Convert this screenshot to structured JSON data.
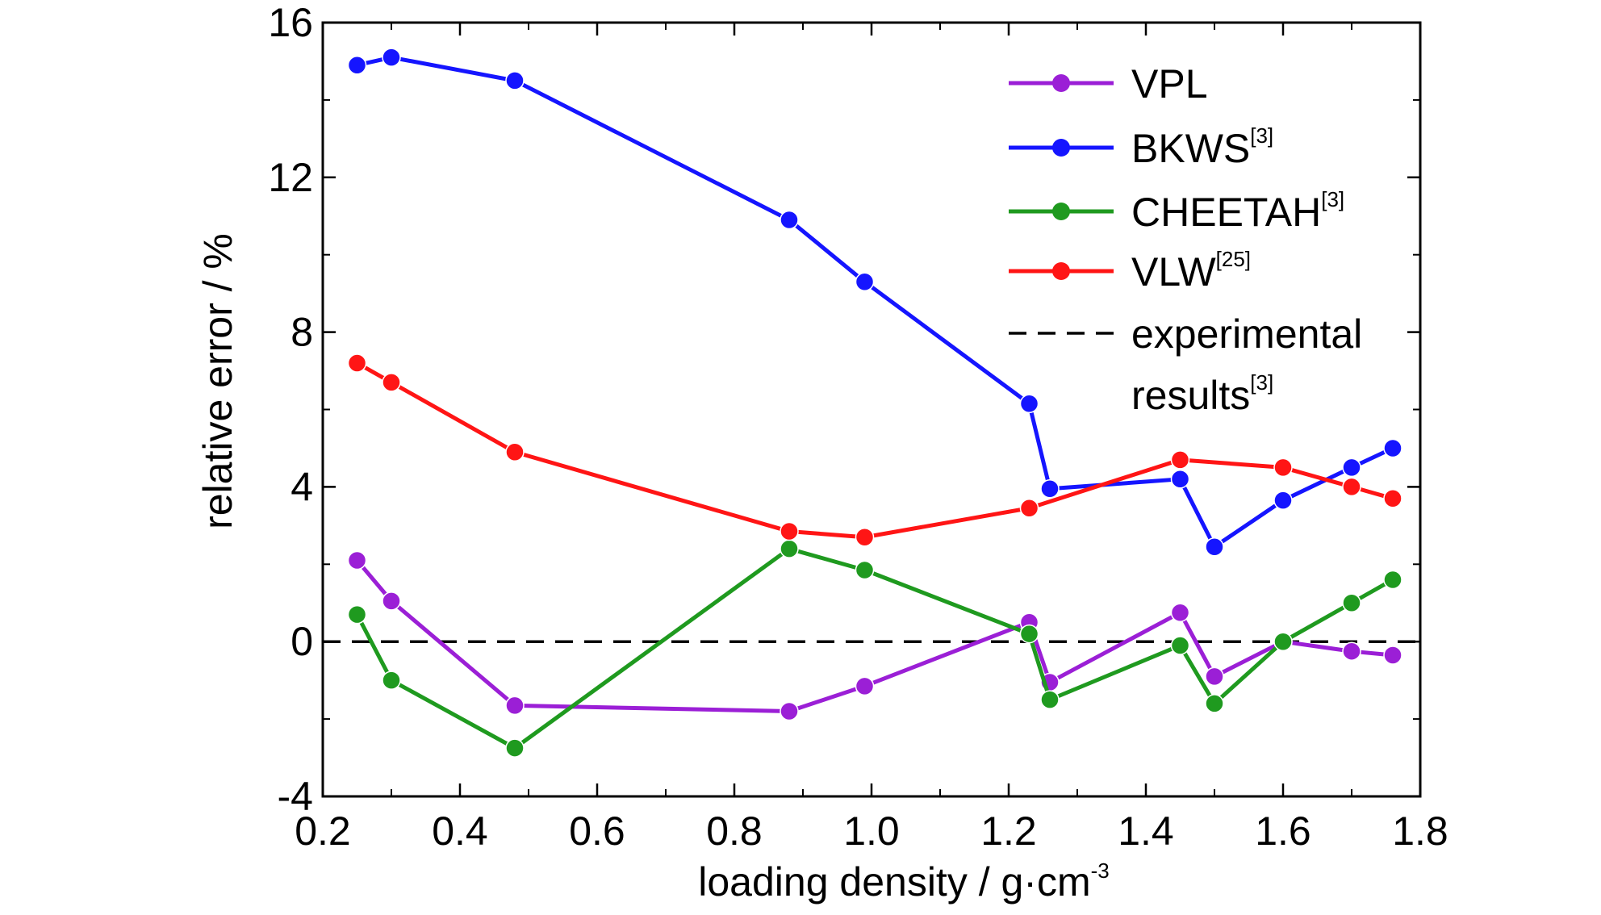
{
  "chart_data": {
    "type": "line",
    "xlabel": "loading density / g·cm",
    "xlabel_sup": "-3",
    "ylabel": "relative error / %",
    "xlim": [
      0.2,
      1.8
    ],
    "ylim": [
      -4,
      16
    ],
    "x_ticks": [
      "0.2",
      "0.4",
      "0.6",
      "0.8",
      "1.0",
      "1.2",
      "1.4",
      "1.6",
      "1.8"
    ],
    "y_ticks": [
      "-4",
      "0",
      "4",
      "8",
      "12",
      "16"
    ],
    "legend_position": "top-right",
    "grid": false,
    "series": [
      {
        "name": "VPL",
        "ref": "",
        "color": "#9b1fd6",
        "points": [
          [
            0.25,
            2.1
          ],
          [
            0.3,
            1.05
          ],
          [
            0.48,
            -1.65
          ],
          [
            0.88,
            -1.8
          ],
          [
            0.99,
            -1.15
          ],
          [
            1.23,
            0.5
          ],
          [
            1.26,
            -1.05
          ],
          [
            1.45,
            0.75
          ],
          [
            1.5,
            -0.9
          ],
          [
            1.6,
            0.0
          ],
          [
            1.7,
            -0.25
          ],
          [
            1.76,
            -0.35
          ]
        ]
      },
      {
        "name": "BKWS",
        "ref": "[3]",
        "color": "#1515ff",
        "points": [
          [
            0.25,
            14.9
          ],
          [
            0.3,
            15.1
          ],
          [
            0.48,
            14.5
          ],
          [
            0.88,
            10.9
          ],
          [
            0.99,
            9.3
          ],
          [
            1.23,
            6.15
          ],
          [
            1.26,
            3.95
          ],
          [
            1.45,
            4.2
          ],
          [
            1.5,
            2.45
          ],
          [
            1.6,
            3.65
          ],
          [
            1.7,
            4.5
          ],
          [
            1.76,
            5.0
          ]
        ]
      },
      {
        "name": "CHEETAH",
        "ref": "[3]",
        "color": "#1f9a1f",
        "points": [
          [
            0.25,
            0.7
          ],
          [
            0.3,
            -1.0
          ],
          [
            0.48,
            -2.75
          ],
          [
            0.88,
            2.4
          ],
          [
            0.99,
            1.85
          ],
          [
            1.23,
            0.2
          ],
          [
            1.26,
            -1.5
          ],
          [
            1.45,
            -0.1
          ],
          [
            1.5,
            -1.6
          ],
          [
            1.6,
            0.0
          ],
          [
            1.7,
            1.0
          ],
          [
            1.76,
            1.6
          ]
        ]
      },
      {
        "name": "VLW",
        "ref": "[25]",
        "color": "#ff1515",
        "points": [
          [
            0.25,
            7.2
          ],
          [
            0.3,
            6.7
          ],
          [
            0.48,
            4.9
          ],
          [
            0.88,
            2.85
          ],
          [
            0.99,
            2.7
          ],
          [
            1.23,
            3.45
          ],
          [
            1.45,
            4.7
          ],
          [
            1.6,
            4.5
          ],
          [
            1.7,
            4.0
          ],
          [
            1.76,
            3.7
          ]
        ]
      }
    ],
    "reference_line": {
      "name": "experimental",
      "name_line2": "results",
      "ref": "[3]",
      "y": 0,
      "color": "#000000",
      "style": "dashed"
    }
  }
}
